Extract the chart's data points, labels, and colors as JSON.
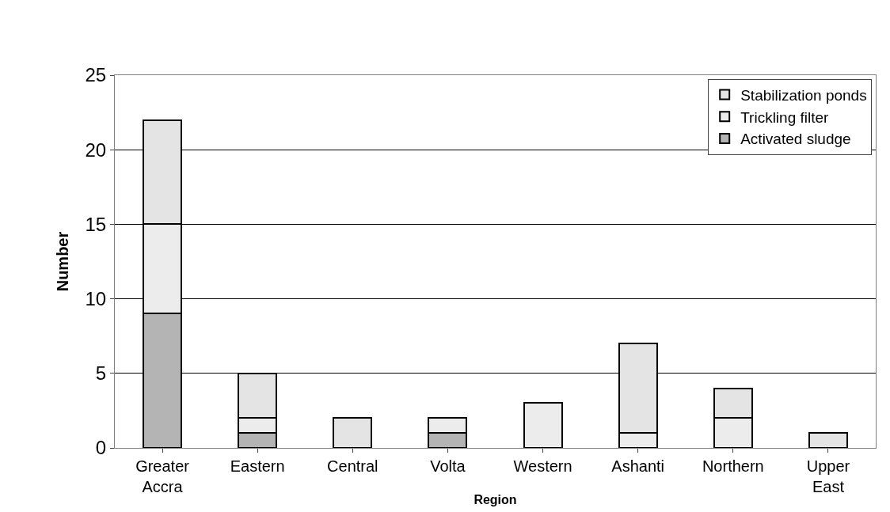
{
  "chart_data": {
    "type": "bar",
    "stacked": true,
    "xlabel": "Region",
    "ylabel": "Number",
    "categories": [
      "Greater Accra",
      "Eastern",
      "Central",
      "Volta",
      "Western",
      "Ashanti",
      "Northern",
      "Upper East"
    ],
    "series": [
      {
        "name": "Activated sludge",
        "color": "#b4b4b4",
        "values": [
          9,
          1,
          0,
          1,
          0,
          0,
          0,
          0
        ]
      },
      {
        "name": "Trickling filter",
        "color": "#ececec",
        "values": [
          6,
          1,
          0,
          1,
          3,
          1,
          2,
          0
        ]
      },
      {
        "name": "Stabilization ponds",
        "color": "#e4e4e4",
        "values": [
          7,
          3,
          2,
          0,
          0,
          6,
          2,
          1
        ]
      }
    ],
    "ylim": [
      0,
      25
    ],
    "yticks": [
      0,
      5,
      10,
      15,
      20,
      25
    ],
    "grid": "y",
    "legend": "top right"
  }
}
